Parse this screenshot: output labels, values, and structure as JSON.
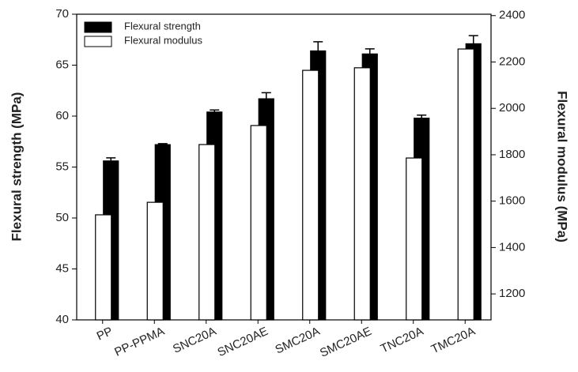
{
  "chart_data": {
    "type": "bar",
    "categories": [
      "PP",
      "PP-PPMA",
      "SNC20A",
      "SNC20AE",
      "SMC20A",
      "SMC20AE",
      "TNC20A",
      "TMC20A"
    ],
    "series": [
      {
        "name": "Flexural strength",
        "color": "#000000",
        "axis": "y",
        "values": [
          55.6,
          57.2,
          60.4,
          61.7,
          66.4,
          66.1,
          59.8,
          67.1
        ],
        "errors": [
          0.3,
          0.1,
          0.2,
          0.6,
          0.9,
          0.5,
          0.3,
          0.8
        ]
      },
      {
        "name": "Flexural modulus",
        "color": "#ffffff",
        "axis": "y2",
        "values": [
          1541,
          1595,
          1844,
          1926,
          2164,
          2175,
          1786,
          2256
        ]
      }
    ],
    "ylabel": "Flexural strength (MPa)",
    "y2label": "Flexural modulus (MPa)",
    "ylim": [
      40,
      70
    ],
    "yticks": [
      40,
      45,
      50,
      55,
      60,
      65,
      70
    ],
    "y2lim": [
      1088,
      2406
    ],
    "y2ticks": [
      1200,
      1400,
      1600,
      1800,
      2000,
      2200,
      2400
    ],
    "legend": "upper left"
  }
}
